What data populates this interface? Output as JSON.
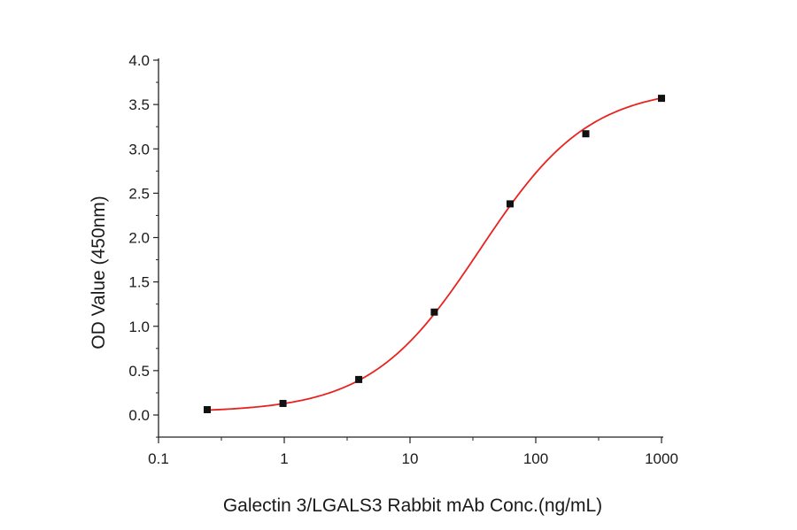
{
  "chart_data": {
    "type": "scatter",
    "title": "",
    "xlabel": "Galectin 3/LGALS3 Rabbit mAb Conc.(ng/mL)",
    "ylabel": "OD Value (450nm)",
    "xscale": "log",
    "xlim": [
      0.1,
      1000
    ],
    "ylim": [
      -0.25,
      4.0
    ],
    "x_ticks": [
      0.1,
      1,
      10,
      100,
      1000
    ],
    "x_tick_labels": [
      "0.1",
      "1",
      "10",
      "100",
      "1000"
    ],
    "y_ticks": [
      0.0,
      0.5,
      1.0,
      1.5,
      2.0,
      2.5,
      3.0,
      3.5,
      4.0
    ],
    "y_tick_labels": [
      "0.0",
      "0.5",
      "1.0",
      "1.5",
      "2.0",
      "2.5",
      "3.0",
      "3.5",
      "4.0"
    ],
    "grid": false,
    "legend": "none",
    "series": [
      {
        "marker": "square",
        "color": "#111111",
        "x": [
          0.244,
          0.977,
          3.91,
          15.6,
          62.5,
          250,
          1000
        ],
        "y": [
          0.06,
          0.13,
          0.4,
          1.16,
          2.38,
          3.17,
          3.57
        ]
      }
    ],
    "fit": {
      "model": "4PL",
      "color": "#e8231f",
      "bottom": 0.03,
      "top": 3.7,
      "ec50": 36.0,
      "hill": 1.0
    }
  }
}
